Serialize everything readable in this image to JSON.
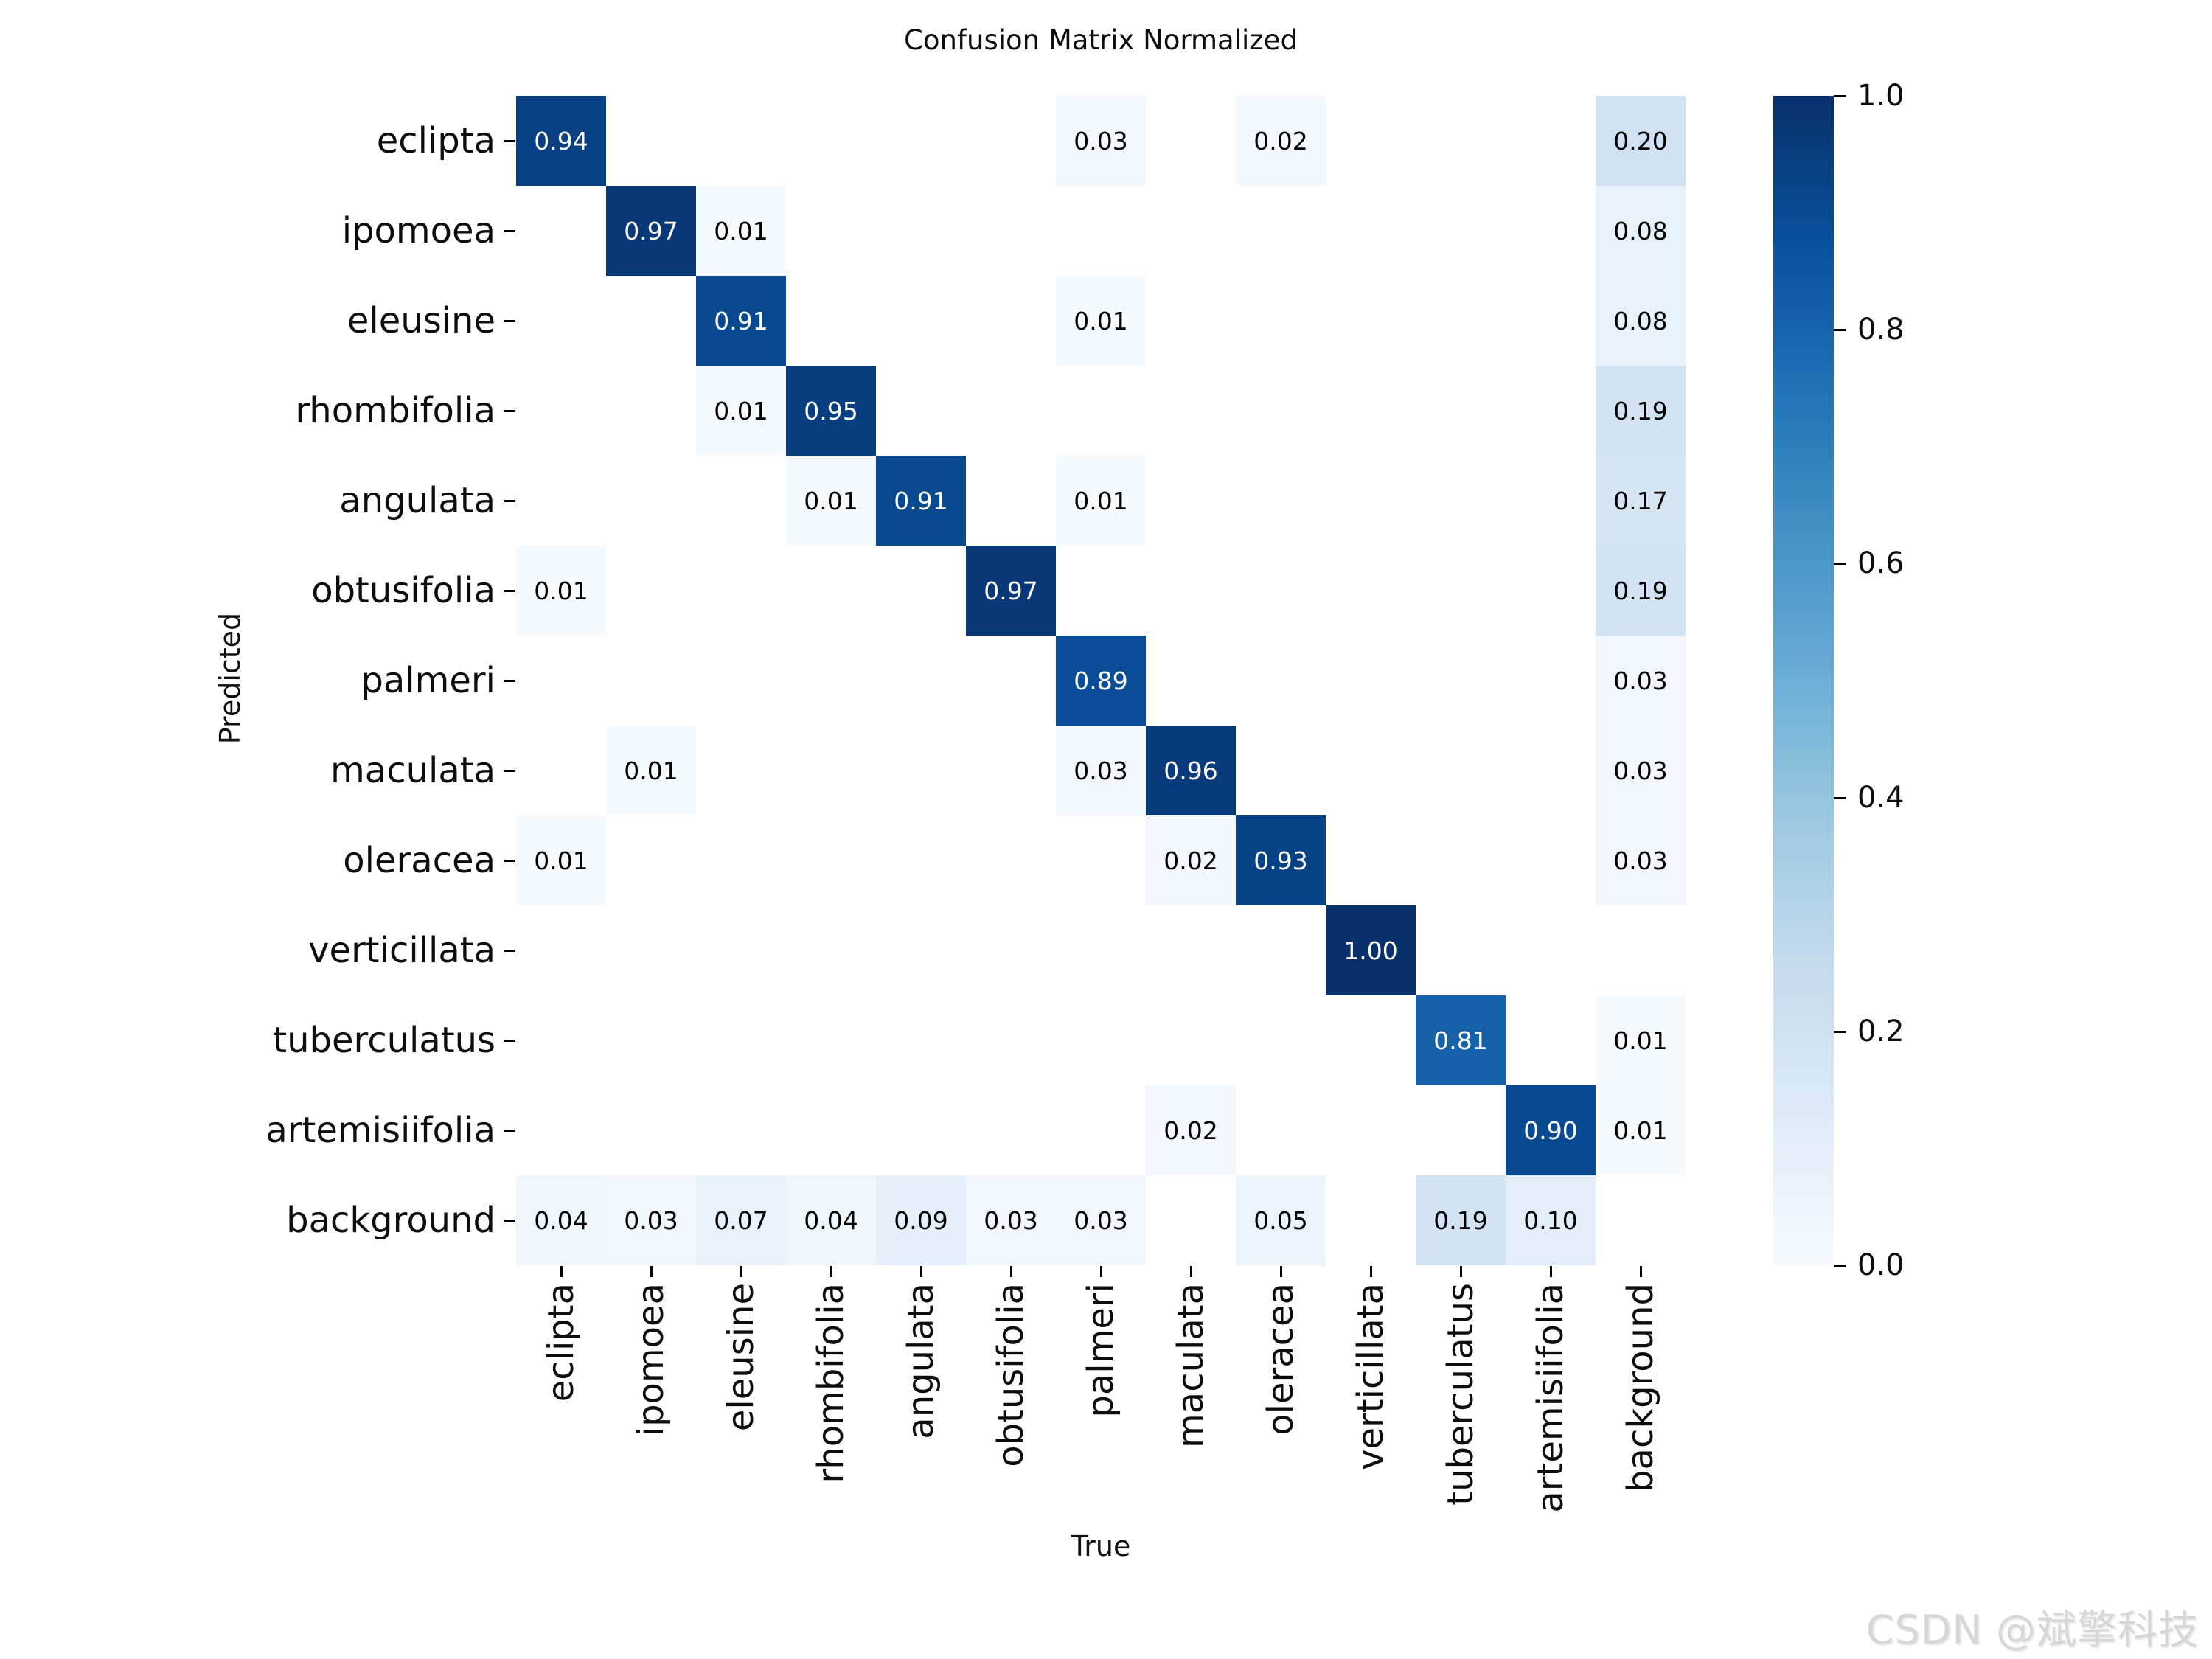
{
  "title": "Confusion Matrix Normalized",
  "axes": {
    "x_label": "True",
    "y_label": "Predicted"
  },
  "watermark": "CSDN @斌擎科技",
  "chart_data": {
    "type": "heatmap",
    "title": "Confusion Matrix Normalized",
    "xlabel": "True",
    "ylabel": "Predicted",
    "categories": [
      "eclipta",
      "ipomoea",
      "eleusine",
      "rhombifolia",
      "angulata",
      "obtusifolia",
      "palmeri",
      "maculata",
      "oleracea",
      "verticillata",
      "tuberculatus",
      "artemisiifolia",
      "background"
    ],
    "matrix": [
      [
        0.94,
        null,
        null,
        null,
        null,
        null,
        0.03,
        null,
        0.02,
        null,
        null,
        null,
        0.2
      ],
      [
        null,
        0.97,
        0.01,
        null,
        null,
        null,
        null,
        null,
        null,
        null,
        null,
        null,
        0.08
      ],
      [
        null,
        null,
        0.91,
        null,
        null,
        null,
        0.01,
        null,
        null,
        null,
        null,
        null,
        0.08
      ],
      [
        null,
        null,
        0.01,
        0.95,
        null,
        null,
        null,
        null,
        null,
        null,
        null,
        null,
        0.19
      ],
      [
        null,
        null,
        null,
        0.01,
        0.91,
        null,
        0.01,
        null,
        null,
        null,
        null,
        null,
        0.17
      ],
      [
        0.01,
        null,
        null,
        null,
        null,
        0.97,
        null,
        null,
        null,
        null,
        null,
        null,
        0.19
      ],
      [
        null,
        null,
        null,
        null,
        null,
        null,
        0.89,
        null,
        null,
        null,
        null,
        null,
        0.03
      ],
      [
        null,
        0.01,
        null,
        null,
        null,
        null,
        0.03,
        0.96,
        null,
        null,
        null,
        null,
        0.03
      ],
      [
        0.01,
        null,
        null,
        null,
        null,
        null,
        null,
        0.02,
        0.93,
        null,
        null,
        null,
        0.03
      ],
      [
        null,
        null,
        null,
        null,
        null,
        null,
        null,
        null,
        null,
        1.0,
        null,
        null,
        null
      ],
      [
        null,
        null,
        null,
        null,
        null,
        null,
        null,
        null,
        null,
        null,
        0.81,
        null,
        0.01
      ],
      [
        null,
        null,
        null,
        null,
        null,
        null,
        null,
        0.02,
        null,
        null,
        null,
        0.9,
        0.01
      ],
      [
        0.04,
        0.03,
        0.07,
        0.04,
        0.09,
        0.03,
        0.03,
        null,
        0.05,
        null,
        0.19,
        0.1,
        null
      ]
    ],
    "value_range": [
      0,
      1
    ],
    "annotation_decimals": 2,
    "grid": false,
    "legend_position": "none",
    "colormap": {
      "name": "Blues",
      "stops": [
        "#f7fbff",
        "#deebf7",
        "#c6dbef",
        "#9ecae1",
        "#6baed6",
        "#4292c6",
        "#2171b5",
        "#08519c",
        "#08306b"
      ],
      "empty_cell_color": "#ffffff",
      "annotation_dark_text": "#000000",
      "annotation_light_text": "#ffffff"
    },
    "colorbar": {
      "position": "right",
      "tick_labels": [
        "1.0",
        "0.8",
        "0.6",
        "0.4",
        "0.2",
        "0.0"
      ]
    }
  }
}
